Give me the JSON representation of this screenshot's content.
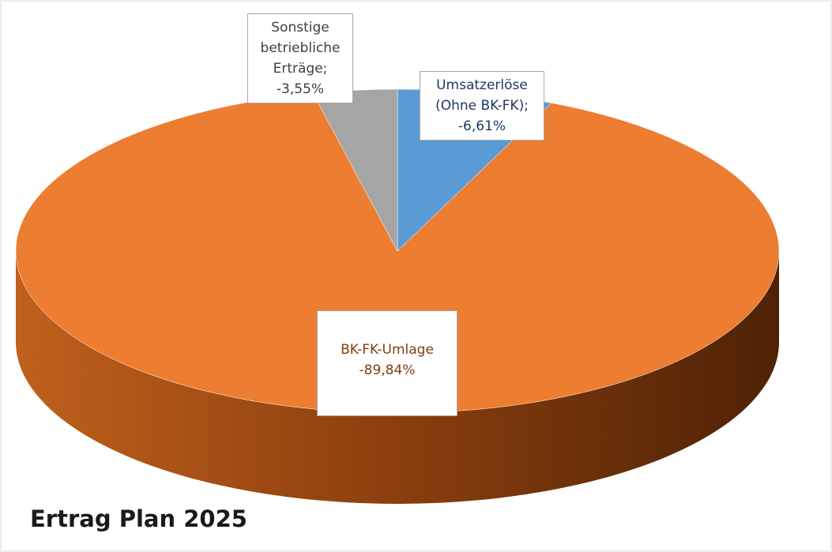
{
  "chart_data": {
    "type": "pie3d",
    "title": "Ertrag Plan 2025",
    "categories": [
      "Umsatzerlöse (Ohne BK-FK);",
      "BK-FK-Umlage",
      "Sonstige betriebliche Erträge;"
    ],
    "values": [
      -6.61,
      -89.84,
      -3.55
    ],
    "value_labels": [
      "-6,61%",
      "-89,84%",
      "-3,55%"
    ],
    "colors": [
      "#5b9bd5",
      "#ed7d31",
      "#a5a5a5"
    ]
  }
}
